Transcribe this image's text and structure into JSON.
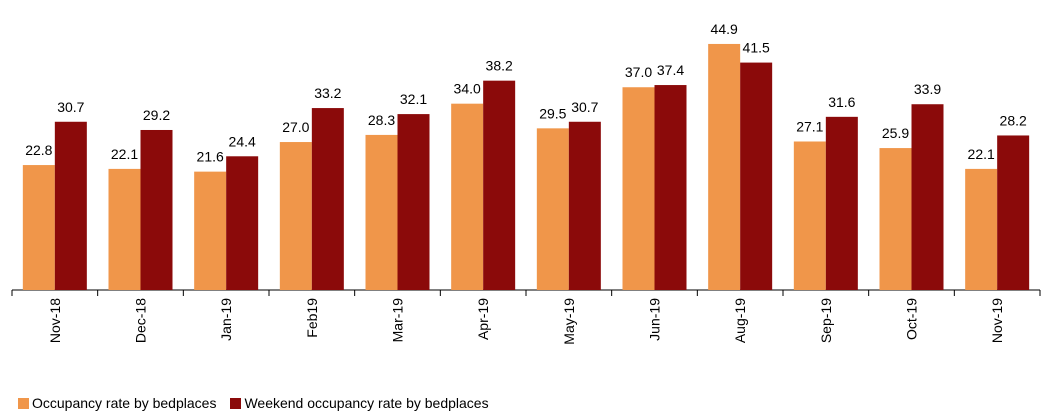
{
  "chart_data": {
    "type": "bar",
    "categories": [
      "Nov-18",
      "Dec-18",
      "Jan-19",
      "Feb19",
      "Mar-19",
      "Apr-19",
      "May-19",
      "Jun-19",
      "Aug-19",
      "Sep-19",
      "Oct-19",
      "Nov-19"
    ],
    "series": [
      {
        "name": "Occupancy rate by bedplaces",
        "color": "#f0964a",
        "values": [
          22.8,
          22.1,
          21.6,
          27.0,
          28.3,
          34.0,
          29.5,
          37.0,
          44.9,
          27.1,
          25.9,
          22.1
        ],
        "value_labels": [
          "22.8",
          "22.1",
          "21.6",
          "27.0",
          "28.3",
          "34.0",
          "29.5",
          "37.0",
          "44.9",
          "27.1",
          "25.9",
          "22.1"
        ]
      },
      {
        "name": "Weekend occupancy rate by bedplaces",
        "color": "#8b0a0a",
        "values": [
          30.7,
          29.2,
          24.4,
          33.2,
          32.1,
          38.2,
          30.7,
          37.4,
          41.5,
          31.6,
          33.9,
          28.2
        ],
        "value_labels": [
          "30.7",
          "29.2",
          "24.4",
          "33.2",
          "32.1",
          "38.2",
          "30.7",
          "37.4",
          "41.5",
          "31.6",
          "33.9",
          "28.2"
        ]
      }
    ],
    "ylim": [
      0,
      50
    ]
  }
}
